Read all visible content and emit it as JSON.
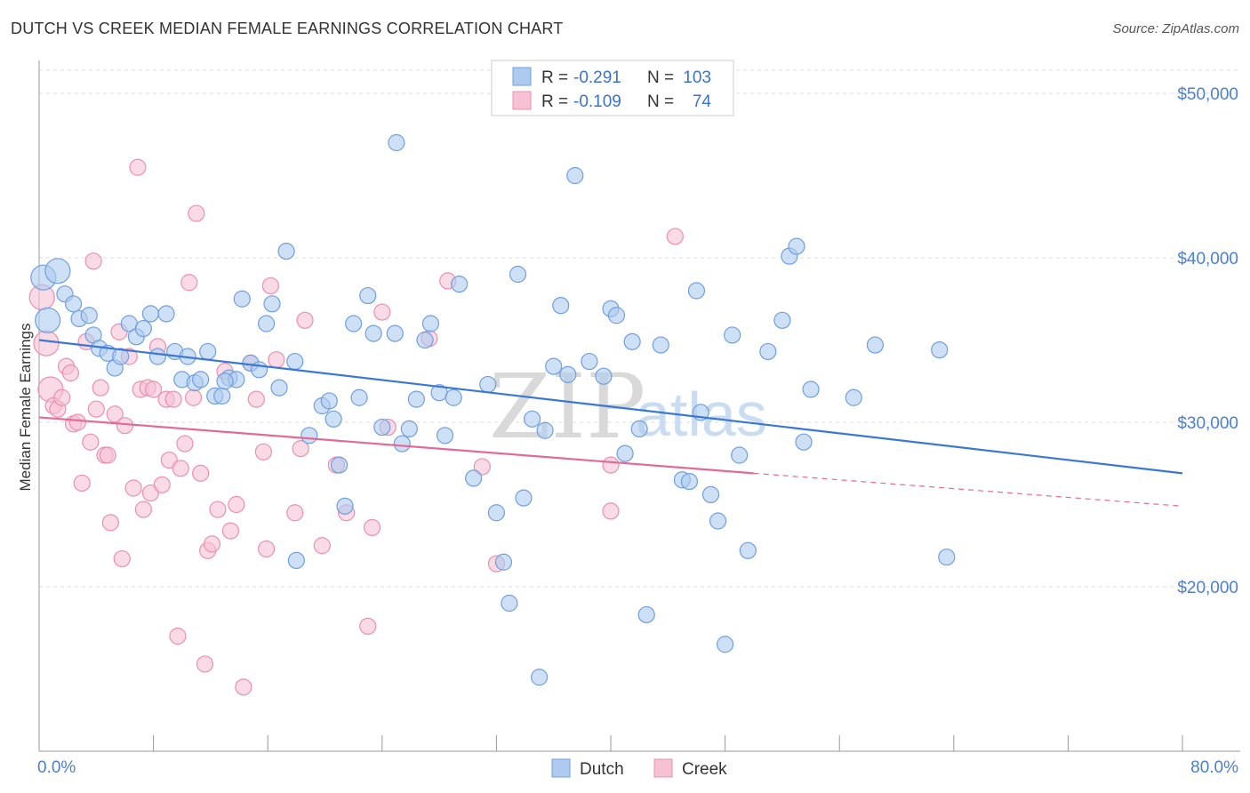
{
  "header": {
    "title": "DUTCH VS CREEK MEDIAN FEMALE EARNINGS CORRELATION CHART",
    "source": "Source: ZipAtlas.com"
  },
  "watermark": {
    "part1": "ZIP",
    "part2": "atlas"
  },
  "legend_box": {
    "rows": [
      {
        "r_label": "R =",
        "r_value": "-0.291",
        "n_label": "N =",
        "n_value": "103"
      },
      {
        "r_label": "R =",
        "r_value": "-0.109",
        "n_label": "N =",
        "n_value": "74"
      }
    ]
  },
  "bottom_legend": {
    "dutch": "Dutch",
    "creek": "Creek"
  },
  "colors": {
    "dutch_fill": "#aecbef",
    "dutch_stroke": "#6f9fe0",
    "dutch_line": "#3a78d6",
    "creek_fill": "#f6c2d3",
    "creek_stroke": "#e990b0",
    "creek_line": "#e36a96",
    "grid": "#dddddd",
    "tick_text": "#4a7fd4"
  },
  "chart_data": {
    "type": "scatter",
    "title": "DUTCH VS CREEK MEDIAN FEMALE EARNINGS CORRELATION CHART",
    "xlabel": "",
    "ylabel": "Median Female Earnings",
    "xlim": [
      0,
      80
    ],
    "ylim": [
      10000,
      52000
    ],
    "x_tick_labels": [
      "0.0%",
      "80.0%"
    ],
    "y_ticks": [
      20000,
      30000,
      40000,
      50000
    ],
    "y_tick_labels": [
      "$20,000",
      "$30,000",
      "$40,000",
      "$50,000"
    ],
    "grid": true,
    "legend_position": "top-center",
    "series": [
      {
        "name": "Dutch",
        "r": -0.291,
        "n": 103,
        "trend": {
          "x": [
            0,
            80
          ],
          "y": [
            35000,
            26900
          ]
        },
        "points": [
          [
            0.3,
            38800
          ],
          [
            0.6,
            36200
          ],
          [
            1.3,
            39200
          ],
          [
            1.8,
            37800
          ],
          [
            2.4,
            37200
          ],
          [
            2.8,
            36300
          ],
          [
            3.5,
            36500
          ],
          [
            3.8,
            35300
          ],
          [
            4.2,
            34500
          ],
          [
            4.8,
            34200
          ],
          [
            5.3,
            33300
          ],
          [
            5.7,
            34000
          ],
          [
            6.3,
            36000
          ],
          [
            6.8,
            35200
          ],
          [
            7.3,
            35700
          ],
          [
            7.8,
            36600
          ],
          [
            8.3,
            34000
          ],
          [
            8.9,
            36600
          ],
          [
            9.5,
            34300
          ],
          [
            10.0,
            32600
          ],
          [
            10.4,
            34000
          ],
          [
            10.9,
            32400
          ],
          [
            11.3,
            32600
          ],
          [
            11.8,
            34300
          ],
          [
            12.3,
            31600
          ],
          [
            12.8,
            31600
          ],
          [
            13.3,
            32700
          ],
          [
            13.8,
            32600
          ],
          [
            14.2,
            37500
          ],
          [
            14.8,
            33600
          ],
          [
            15.4,
            33200
          ],
          [
            15.9,
            36000
          ],
          [
            16.3,
            37200
          ],
          [
            16.8,
            32100
          ],
          [
            17.3,
            40400
          ],
          [
            17.9,
            33700
          ],
          [
            18.9,
            29200
          ],
          [
            19.8,
            31000
          ],
          [
            20.3,
            31300
          ],
          [
            20.6,
            30200
          ],
          [
            21.0,
            27400
          ],
          [
            21.4,
            24900
          ],
          [
            22.0,
            36000
          ],
          [
            22.4,
            31500
          ],
          [
            23.0,
            37700
          ],
          [
            23.4,
            35400
          ],
          [
            24.0,
            29700
          ],
          [
            24.9,
            35400
          ],
          [
            25.4,
            28700
          ],
          [
            25.9,
            29600
          ],
          [
            26.4,
            31400
          ],
          [
            27.0,
            35000
          ],
          [
            27.4,
            36000
          ],
          [
            28.0,
            31800
          ],
          [
            28.4,
            29200
          ],
          [
            29.0,
            31500
          ],
          [
            29.4,
            38400
          ],
          [
            30.4,
            26600
          ],
          [
            31.4,
            32300
          ],
          [
            32.0,
            24500
          ],
          [
            32.5,
            21500
          ],
          [
            32.9,
            19000
          ],
          [
            33.5,
            39000
          ],
          [
            33.9,
            25400
          ],
          [
            34.5,
            30200
          ],
          [
            35.0,
            14500
          ],
          [
            35.4,
            29500
          ],
          [
            36.0,
            33400
          ],
          [
            36.5,
            37100
          ],
          [
            37.0,
            32900
          ],
          [
            37.5,
            45000
          ],
          [
            38.5,
            33700
          ],
          [
            39.5,
            32800
          ],
          [
            40.0,
            36900
          ],
          [
            40.4,
            36500
          ],
          [
            41.0,
            28100
          ],
          [
            41.5,
            34900
          ],
          [
            42.0,
            29600
          ],
          [
            42.5,
            18300
          ],
          [
            43.5,
            34700
          ],
          [
            45.0,
            26500
          ],
          [
            45.5,
            26400
          ],
          [
            46.0,
            38000
          ],
          [
            46.3,
            30600
          ],
          [
            47.0,
            25600
          ],
          [
            47.5,
            24000
          ],
          [
            48.5,
            35300
          ],
          [
            49.0,
            28000
          ],
          [
            49.6,
            22200
          ],
          [
            51.0,
            34300
          ],
          [
            52.0,
            36200
          ],
          [
            52.5,
            40100
          ],
          [
            53.0,
            40700
          ],
          [
            53.5,
            28800
          ],
          [
            54.0,
            32000
          ],
          [
            48.0,
            16500
          ],
          [
            57.0,
            31500
          ],
          [
            58.5,
            34700
          ],
          [
            63.0,
            34400
          ],
          [
            63.5,
            21800
          ],
          [
            25.0,
            47000
          ],
          [
            13.0,
            32500
          ],
          [
            18.0,
            21600
          ]
        ]
      },
      {
        "name": "Creek",
        "r": -0.109,
        "n": 74,
        "trend": {
          "x": [
            0,
            50
          ],
          "y": [
            30300,
            26900
          ]
        },
        "trend_dashed": {
          "x": [
            50,
            80
          ],
          "y": [
            26900,
            24900
          ]
        },
        "points": [
          [
            0.2,
            37600
          ],
          [
            0.5,
            34800
          ],
          [
            0.8,
            32000
          ],
          [
            1.0,
            31000
          ],
          [
            1.3,
            30800
          ],
          [
            1.6,
            31500
          ],
          [
            1.9,
            33400
          ],
          [
            2.2,
            33000
          ],
          [
            2.4,
            29900
          ],
          [
            2.7,
            30000
          ],
          [
            3.0,
            26300
          ],
          [
            3.3,
            34900
          ],
          [
            3.6,
            28800
          ],
          [
            3.8,
            39800
          ],
          [
            4.0,
            30800
          ],
          [
            4.3,
            32100
          ],
          [
            4.6,
            28000
          ],
          [
            4.8,
            28000
          ],
          [
            5.0,
            23900
          ],
          [
            5.3,
            30500
          ],
          [
            5.6,
            35500
          ],
          [
            5.8,
            21700
          ],
          [
            6.0,
            29800
          ],
          [
            6.3,
            34000
          ],
          [
            6.6,
            26000
          ],
          [
            6.9,
            45500
          ],
          [
            7.1,
            32000
          ],
          [
            7.3,
            24700
          ],
          [
            7.6,
            32100
          ],
          [
            7.8,
            25700
          ],
          [
            8.0,
            32000
          ],
          [
            8.3,
            34600
          ],
          [
            8.6,
            26200
          ],
          [
            8.9,
            31400
          ],
          [
            9.1,
            27700
          ],
          [
            9.4,
            31400
          ],
          [
            9.7,
            17000
          ],
          [
            9.9,
            27200
          ],
          [
            10.2,
            28700
          ],
          [
            10.5,
            38500
          ],
          [
            10.8,
            31500
          ],
          [
            11.0,
            42700
          ],
          [
            11.3,
            26900
          ],
          [
            11.6,
            15300
          ],
          [
            11.8,
            22200
          ],
          [
            12.1,
            22600
          ],
          [
            12.5,
            24700
          ],
          [
            13.0,
            33100
          ],
          [
            13.4,
            23400
          ],
          [
            13.8,
            25000
          ],
          [
            14.3,
            13900
          ],
          [
            14.8,
            33600
          ],
          [
            15.2,
            31400
          ],
          [
            15.7,
            28200
          ],
          [
            15.9,
            22300
          ],
          [
            16.2,
            38300
          ],
          [
            16.6,
            33800
          ],
          [
            17.9,
            24500
          ],
          [
            18.3,
            28400
          ],
          [
            18.6,
            36200
          ],
          [
            19.8,
            22500
          ],
          [
            20.8,
            27400
          ],
          [
            21.5,
            24500
          ],
          [
            23.0,
            17600
          ],
          [
            23.3,
            23600
          ],
          [
            24.0,
            36700
          ],
          [
            24.4,
            29700
          ],
          [
            27.3,
            35100
          ],
          [
            28.6,
            38600
          ],
          [
            31.0,
            27300
          ],
          [
            32.0,
            21400
          ],
          [
            40.0,
            27400
          ],
          [
            40.0,
            24600
          ],
          [
            44.5,
            41300
          ]
        ]
      }
    ]
  }
}
